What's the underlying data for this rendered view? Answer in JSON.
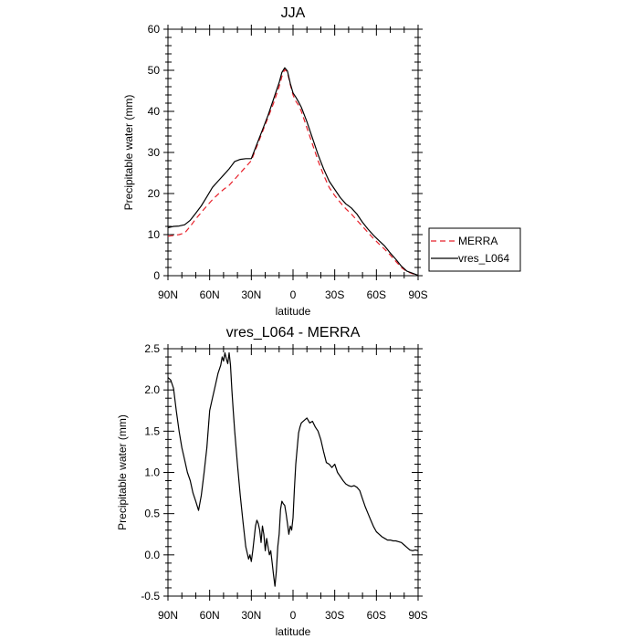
{
  "chart_data": [
    {
      "type": "line",
      "title": "JJA",
      "xlabel": "latitude",
      "ylabel": "Precipitable water (mm)",
      "xlim": [
        90,
        -90
      ],
      "ylim": [
        0,
        60
      ],
      "x_ticks": [
        {
          "value": 90,
          "label": "90N"
        },
        {
          "value": 60,
          "label": "60N"
        },
        {
          "value": 30,
          "label": "30N"
        },
        {
          "value": 0,
          "label": "0"
        },
        {
          "value": -30,
          "label": "30S"
        },
        {
          "value": -60,
          "label": "60S"
        },
        {
          "value": -90,
          "label": "90S"
        }
      ],
      "y_ticks": [
        {
          "value": 0,
          "label": "0"
        },
        {
          "value": 10,
          "label": "10"
        },
        {
          "value": 20,
          "label": "20"
        },
        {
          "value": 30,
          "label": "30"
        },
        {
          "value": 40,
          "label": "40"
        },
        {
          "value": 50,
          "label": "50"
        },
        {
          "value": 60,
          "label": "60"
        }
      ],
      "legend": {
        "position": "right",
        "entries": [
          "MERRA",
          "vres_L064"
        ]
      },
      "series": [
        {
          "name": "MERRA",
          "color": "#e8202a",
          "style": "dashed",
          "x": [
            90,
            86,
            82,
            78,
            74,
            70,
            66,
            62,
            58,
            54,
            50,
            46,
            42,
            38,
            34,
            30,
            26,
            22,
            18,
            14,
            10,
            8,
            6,
            4,
            2,
            0,
            -2,
            -4,
            -6,
            -10,
            -14,
            -18,
            -22,
            -26,
            -30,
            -34,
            -38,
            -42,
            -46,
            -50,
            -54,
            -58,
            -62,
            -66,
            -70,
            -74,
            -78,
            -82,
            -86,
            -90
          ],
          "y": [
            9.6,
            9.8,
            10.0,
            10.4,
            12.0,
            13.8,
            15.4,
            17.0,
            18.5,
            19.8,
            21.0,
            22.0,
            23.5,
            25.0,
            26.5,
            28.0,
            31.5,
            35.0,
            38.5,
            42.0,
            46.0,
            48.5,
            50.2,
            49.5,
            46.5,
            44.0,
            42.5,
            41.5,
            40.0,
            36.0,
            32.0,
            28.0,
            24.5,
            21.5,
            19.5,
            17.8,
            16.3,
            15.0,
            13.5,
            12.0,
            10.5,
            9.0,
            7.7,
            6.4,
            5.0,
            3.5,
            2.0,
            1.0,
            0.5,
            0.1
          ]
        },
        {
          "name": "vres_L064",
          "color": "#000000",
          "style": "solid",
          "x": [
            90,
            86,
            82,
            78,
            74,
            70,
            66,
            62,
            58,
            54,
            50,
            46,
            42,
            38,
            34,
            30,
            26,
            22,
            18,
            14,
            10,
            8,
            6,
            4,
            2,
            0,
            -2,
            -4,
            -6,
            -10,
            -14,
            -18,
            -22,
            -26,
            -30,
            -34,
            -38,
            -42,
            -46,
            -50,
            -54,
            -58,
            -62,
            -66,
            -70,
            -74,
            -78,
            -82,
            -86,
            -90
          ],
          "y": [
            11.7,
            12.0,
            12.1,
            12.4,
            13.5,
            15.2,
            17.0,
            19.2,
            21.5,
            23.0,
            24.5,
            26.0,
            27.8,
            28.3,
            28.5,
            28.5,
            32.0,
            35.5,
            39.0,
            43.0,
            47.0,
            49.5,
            50.6,
            49.8,
            46.8,
            44.5,
            43.5,
            42.3,
            41.0,
            37.5,
            33.5,
            29.5,
            26.0,
            23.0,
            21.0,
            19.0,
            17.5,
            16.5,
            15.0,
            13.0,
            11.3,
            9.8,
            8.5,
            7.2,
            5.5,
            4.0,
            2.3,
            1.1,
            0.6,
            0.1
          ]
        }
      ]
    },
    {
      "type": "line",
      "title": "vres_L064 - MERRA",
      "xlabel": "latitude",
      "ylabel": "Precipitable water (mm)",
      "xlim": [
        90,
        -90
      ],
      "ylim": [
        -0.5,
        2.5
      ],
      "x_ticks": [
        {
          "value": 90,
          "label": "90N"
        },
        {
          "value": 60,
          "label": "60N"
        },
        {
          "value": 30,
          "label": "30N"
        },
        {
          "value": 0,
          "label": "0"
        },
        {
          "value": -30,
          "label": "30S"
        },
        {
          "value": -60,
          "label": "60S"
        },
        {
          "value": -90,
          "label": "90S"
        }
      ],
      "y_ticks": [
        {
          "value": -0.5,
          "label": "-0.5"
        },
        {
          "value": 0.0,
          "label": "0.0"
        },
        {
          "value": 0.5,
          "label": "0.5"
        },
        {
          "value": 1.0,
          "label": "1.0"
        },
        {
          "value": 1.5,
          "label": "1.5"
        },
        {
          "value": 2.0,
          "label": "2.0"
        },
        {
          "value": 2.5,
          "label": "2.5"
        }
      ],
      "series": [
        {
          "color": "#000000",
          "style": "solid",
          "x": [
            90,
            88,
            86,
            84,
            82,
            80,
            78,
            76,
            74,
            72,
            70,
            68,
            66,
            64,
            62,
            60,
            58,
            56,
            54,
            52,
            51,
            50,
            49,
            48,
            47,
            46,
            45,
            44,
            43,
            42,
            41,
            40,
            38,
            36,
            34,
            32,
            31,
            30,
            29,
            28,
            27,
            26,
            25,
            24,
            23,
            22,
            21,
            20,
            19,
            18,
            17,
            16,
            15,
            14,
            13,
            12,
            11,
            10,
            9,
            8,
            7,
            6,
            5,
            4,
            3,
            2,
            1,
            0,
            -1,
            -2,
            -3,
            -4,
            -5,
            -6,
            -8,
            -10,
            -12,
            -14,
            -16,
            -18,
            -20,
            -22,
            -24,
            -26,
            -28,
            -30,
            -32,
            -34,
            -36,
            -38,
            -40,
            -42,
            -44,
            -46,
            -48,
            -50,
            -52,
            -54,
            -56,
            -58,
            -60,
            -62,
            -64,
            -66,
            -68,
            -70,
            -72,
            -74,
            -76,
            -78,
            -80,
            -82,
            -84,
            -86,
            -88,
            -90
          ],
          "y": [
            2.15,
            2.12,
            2.02,
            1.75,
            1.5,
            1.3,
            1.15,
            1.0,
            0.9,
            0.75,
            0.65,
            0.54,
            0.72,
            1.0,
            1.3,
            1.75,
            1.9,
            2.05,
            2.2,
            2.3,
            2.4,
            2.35,
            2.45,
            2.38,
            2.32,
            2.45,
            2.3,
            2.0,
            1.75,
            1.5,
            1.3,
            1.1,
            0.72,
            0.4,
            0.1,
            -0.05,
            0.0,
            -0.08,
            0.05,
            0.2,
            0.35,
            0.42,
            0.38,
            0.3,
            0.15,
            0.35,
            0.25,
            0.05,
            0.2,
            0.1,
            0.0,
            0.05,
            -0.1,
            -0.25,
            -0.38,
            -0.2,
            0.1,
            0.25,
            0.55,
            0.65,
            0.62,
            0.6,
            0.5,
            0.38,
            0.25,
            0.35,
            0.3,
            0.45,
            0.8,
            1.1,
            1.3,
            1.48,
            1.55,
            1.6,
            1.63,
            1.66,
            1.6,
            1.62,
            1.55,
            1.5,
            1.4,
            1.25,
            1.12,
            1.1,
            1.06,
            1.1,
            1.0,
            0.95,
            0.9,
            0.86,
            0.84,
            0.83,
            0.84,
            0.82,
            0.78,
            0.68,
            0.58,
            0.5,
            0.42,
            0.34,
            0.28,
            0.25,
            0.22,
            0.2,
            0.18,
            0.18,
            0.17,
            0.17,
            0.16,
            0.15,
            0.12,
            0.09,
            0.06,
            0.05,
            0.06,
            0.05
          ]
        }
      ]
    }
  ]
}
